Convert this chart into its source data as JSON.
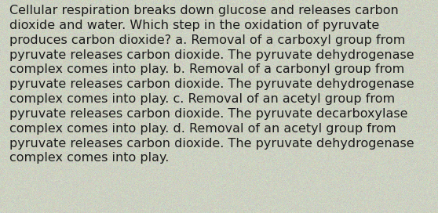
{
  "text": "Cellular respiration breaks down glucose and releases carbon dioxide and water. Which step in the oxidation of pyruvate produces carbon dioxide? a. Removal of a carboxyl group from pyruvate releases carbon dioxide. The pyruvate dehydrogenase complex comes into play. b. Removal of a carbonyl group from pyruvate releases carbon dioxide. The pyruvate dehydrogenase complex comes into play. c. Removal of an acetyl group from pyruvate releases carbon dioxide. The pyruvate decarboxylase complex comes into play. d. Removal of an acetyl group from pyruvate releases carbon dioxide. The pyruvate dehydrogenase complex comes into play.",
  "wrapped_text": "Cellular respiration breaks down glucose and releases carbon\ndioxide and water. Which step in the oxidation of pyruvate\nproduces carbon dioxide? a. Removal of a carboxyl group from\npyruvate releases carbon dioxide. The pyruvate dehydrogenase\ncomplex comes into play. b. Removal of a carbonyl group from\npyruvate releases carbon dioxide. The pyruvate dehydrogenase\ncomplex comes into play. c. Removal of an acetyl group from\npyruvate releases carbon dioxide. The pyruvate decarboxylase\ncomplex comes into play. d. Removal of an acetyl group from\npyruvate releases carbon dioxide. The pyruvate dehydrogenase\ncomplex comes into play.",
  "background_color": "#cdd1c2",
  "text_color": "#1c1c1c",
  "font_size": 11.5,
  "fig_width": 5.58,
  "fig_height": 2.72,
  "dpi": 100
}
